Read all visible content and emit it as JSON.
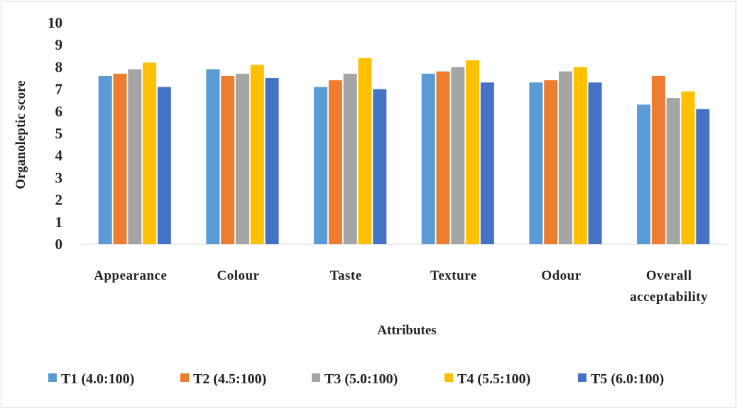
{
  "chart_data": {
    "type": "bar",
    "title": "",
    "xlabel": "Attributes",
    "ylabel": "Organoleptic score",
    "ylim": [
      0,
      10
    ],
    "yticks": [
      "0",
      "1",
      "2",
      "3",
      "4",
      "5",
      "6",
      "7",
      "8",
      "9",
      "10"
    ],
    "grid": false,
    "legend_position": "bottom",
    "categories": [
      [
        "Appearance"
      ],
      [
        "Colour"
      ],
      [
        "Taste"
      ],
      [
        "Texture"
      ],
      [
        "Odour"
      ],
      [
        "Overall",
        "acceptability"
      ]
    ],
    "series": [
      {
        "name": "T1 (4.0:100)",
        "color": "#5b9bd5",
        "values": [
          7.6,
          7.9,
          7.1,
          7.7,
          7.3,
          6.3
        ]
      },
      {
        "name": "T2 (4.5:100)",
        "color": "#ed7d31",
        "values": [
          7.7,
          7.6,
          7.4,
          7.8,
          7.4,
          7.6
        ]
      },
      {
        "name": "T3 (5.0:100)",
        "color": "#a5a5a5",
        "values": [
          7.9,
          7.7,
          7.7,
          8.0,
          7.8,
          6.6
        ]
      },
      {
        "name": "T4 (5.5:100)",
        "color": "#ffc000",
        "values": [
          8.2,
          8.1,
          8.4,
          8.3,
          8.0,
          6.9
        ]
      },
      {
        "name": "T5 (6.0:100)",
        "color": "#4472c4",
        "values": [
          7.1,
          7.5,
          7.0,
          7.3,
          7.3,
          6.1
        ]
      }
    ]
  }
}
